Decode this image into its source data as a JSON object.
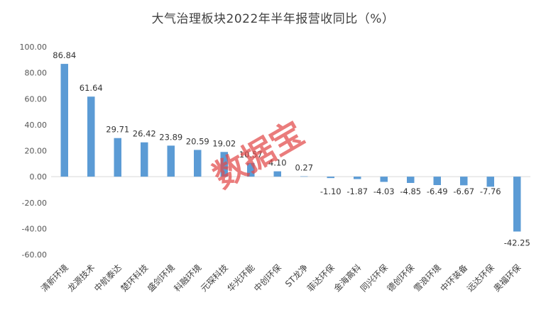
{
  "chart_data": {
    "type": "bar",
    "title": "大气治理板块2022年半年报营收同比（%）",
    "categories": [
      "清新环境",
      "龙源技术",
      "中航泰达",
      "楚环科技",
      "盛剑环境",
      "科融环境",
      "元琛科技",
      "华光环能",
      "中创环保",
      "ST龙净",
      "菲达环保",
      "金海高科",
      "同兴环保",
      "德创环保",
      "雪浪环境",
      "中环装备",
      "远达环保",
      "奥福环保"
    ],
    "values": [
      86.84,
      61.64,
      29.71,
      26.42,
      23.89,
      20.59,
      19.02,
      10.57,
      4.1,
      0.27,
      -1.1,
      -1.87,
      -4.03,
      -4.85,
      -6.49,
      -6.67,
      -7.76,
      -42.25
    ],
    "data_labels": [
      "86.84",
      "61.64",
      "29.71",
      "26.42",
      "23.89",
      "20.59",
      "19.02",
      "10.57",
      "4.10",
      "0.27",
      "-1.10",
      "-1.87",
      "-4.03",
      "-4.85",
      "-6.49",
      "-6.67",
      "-7.76",
      "-42.25"
    ],
    "yticks": [
      "100.00",
      "80.00",
      "60.00",
      "40.00",
      "20.00",
      "0.00",
      "-20.00",
      "-40.00",
      "-60.00"
    ],
    "ylim": [
      -60,
      100
    ],
    "xlabel": "",
    "ylabel": "",
    "bar_color": "#5b9bd5",
    "grid": false,
    "legend": "none"
  },
  "watermark": {
    "text": "数据宝",
    "color": "#e34a4a"
  }
}
